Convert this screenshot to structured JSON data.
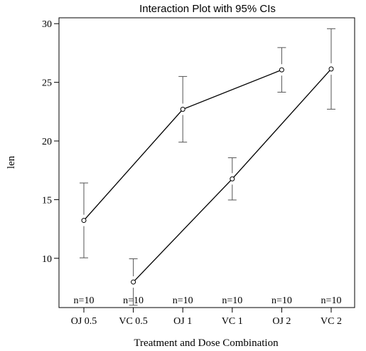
{
  "chart_data": {
    "type": "line",
    "title": "Interaction Plot with 95% CIs",
    "xlabel": "Treatment and Dose Combination",
    "ylabel": "len",
    "categories": [
      "OJ 0.5",
      "VC 0.5",
      "OJ 1",
      "VC 1",
      "OJ 2",
      "VC 2"
    ],
    "y_ticks": [
      10,
      15,
      20,
      25,
      30
    ],
    "ylim": [
      5.8,
      30.5
    ],
    "grid": false,
    "legend": "none",
    "series": [
      {
        "group": "OJ",
        "x_index": [
          0,
          2,
          4
        ],
        "mean": [
          13.23,
          22.7,
          26.06
        ],
        "ci_lower": [
          10.04,
          19.9,
          24.16
        ],
        "ci_upper": [
          16.42,
          25.5,
          27.96
        ]
      },
      {
        "group": "VC",
        "x_index": [
          1,
          3,
          5
        ],
        "mean": [
          7.98,
          16.77,
          26.14
        ],
        "ci_lower": [
          6.0,
          14.97,
          22.71
        ],
        "ci_upper": [
          9.96,
          18.57,
          29.57
        ]
      }
    ],
    "n_labels": [
      "n=10",
      "n=10",
      "n=10",
      "n=10",
      "n=10",
      "n=10"
    ]
  }
}
